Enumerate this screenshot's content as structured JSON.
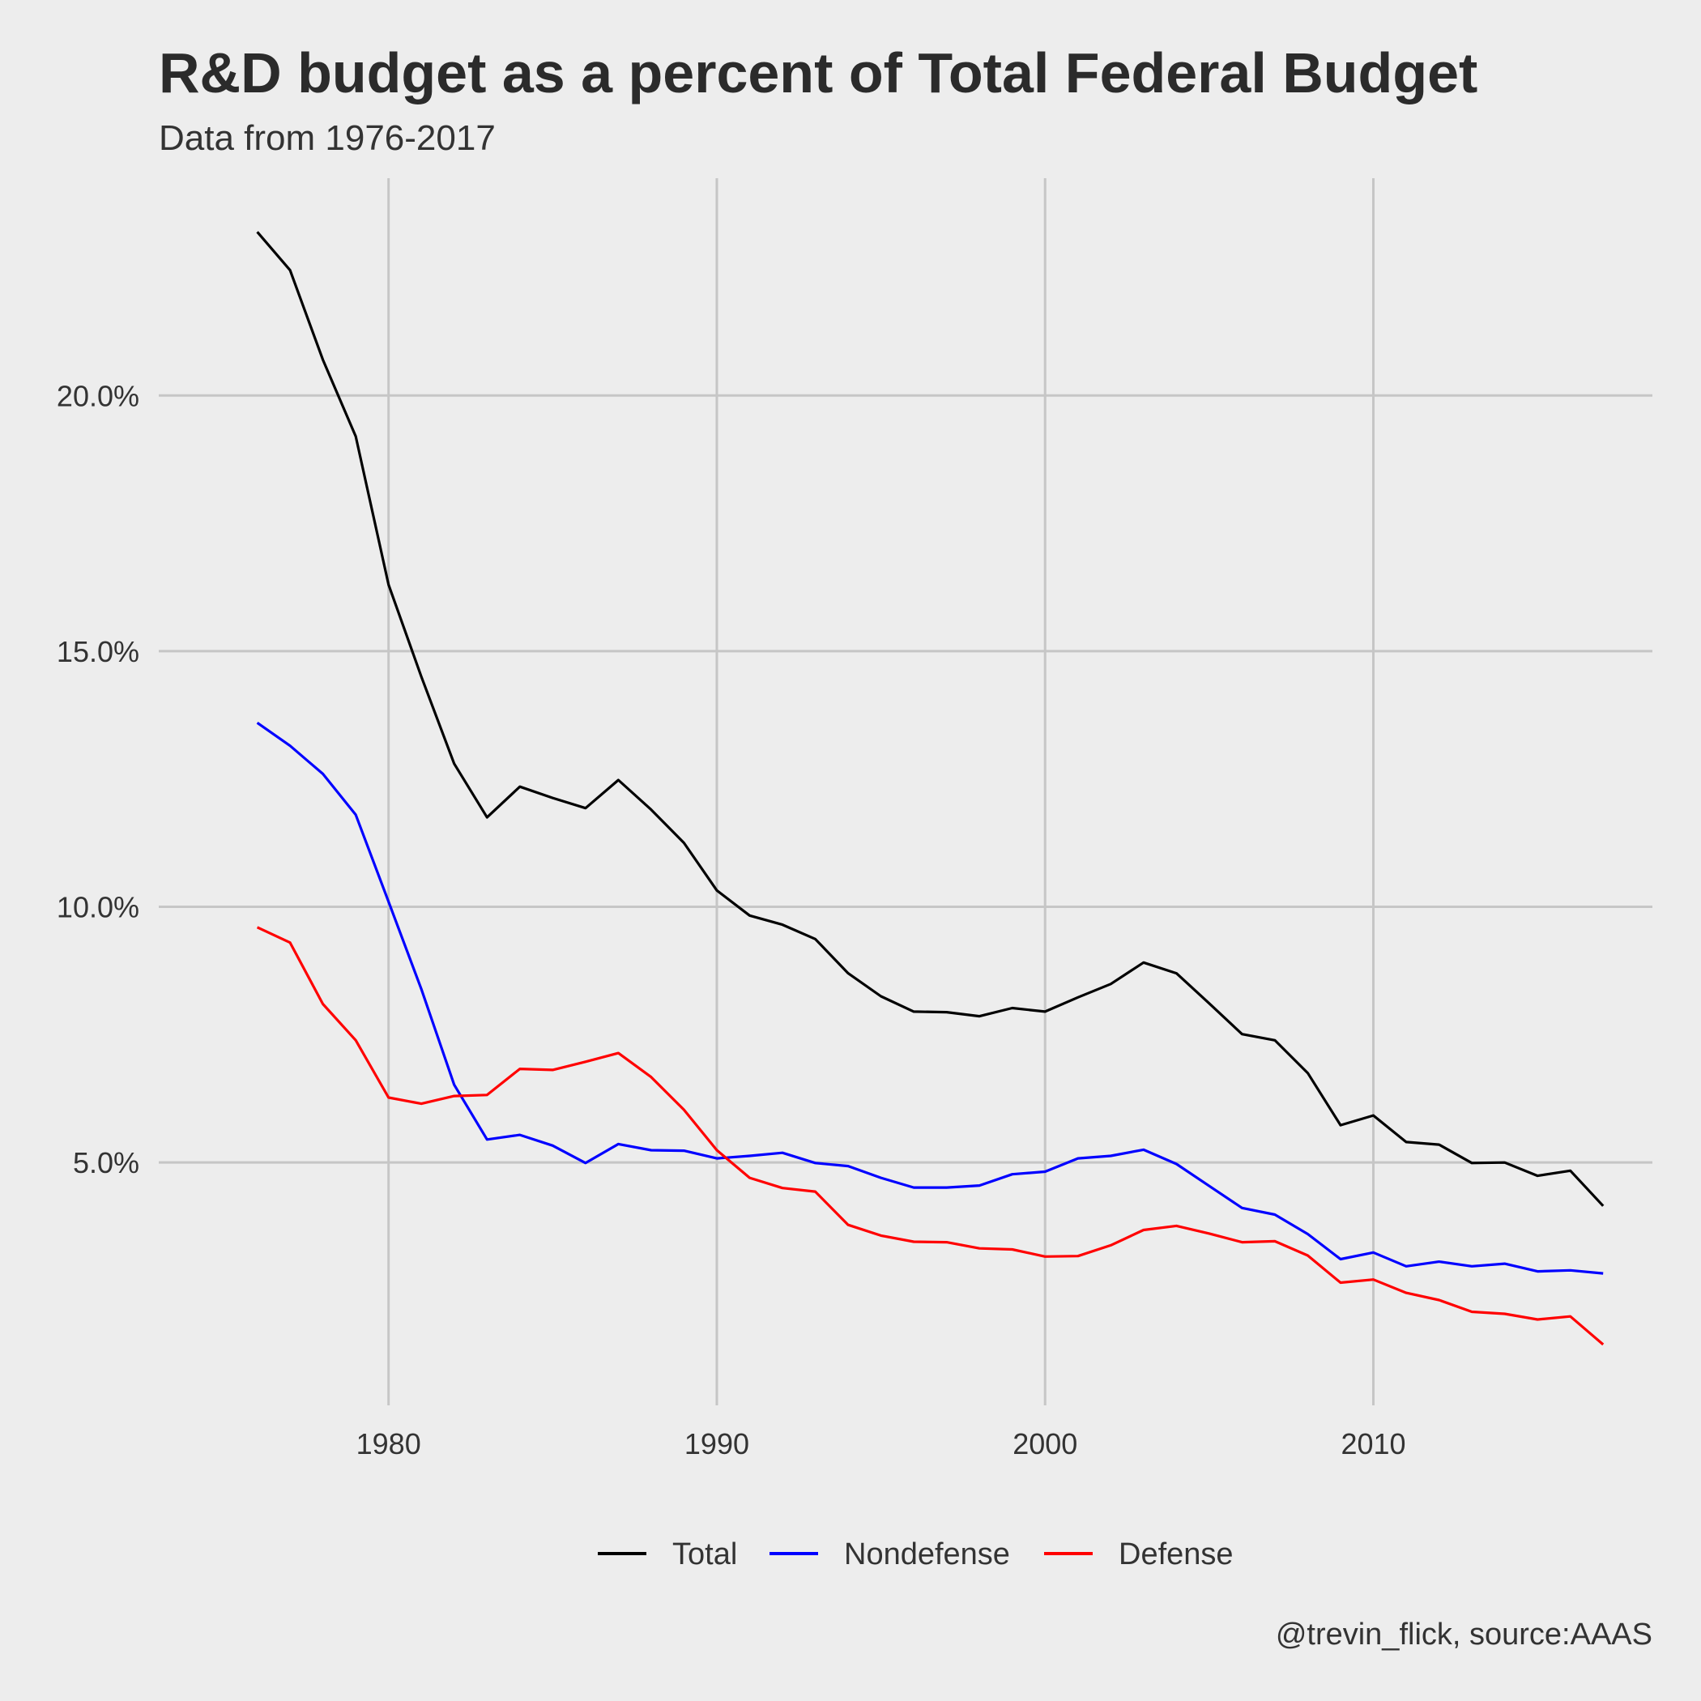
{
  "chart_data": {
    "type": "line",
    "title": "R&D budget as a percent of Total Federal Budget",
    "subtitle": "Data from 1976-2017",
    "caption": "@trevin_flick, source:AAAS",
    "xlabel": "",
    "ylabel": "",
    "xlim": [
      1973,
      2018.5
    ],
    "ylim": [
      0.0025,
      0.2425
    ],
    "x_ticks": [
      1980,
      1990,
      2000,
      2010
    ],
    "x_tick_labels": [
      "1980",
      "1990",
      "2000",
      "2010"
    ],
    "y_ticks": [
      0.05,
      0.1,
      0.15,
      0.2
    ],
    "y_tick_labels": [
      "5.0%",
      "10.0%",
      "15.0%",
      "20.0%"
    ],
    "grid": true,
    "legend_position": "bottom",
    "x": [
      1976,
      1977,
      1978,
      1979,
      1980,
      1981,
      1982,
      1983,
      1984,
      1985,
      1986,
      1987,
      1988,
      1989,
      1990,
      1991,
      1992,
      1993,
      1994,
      1995,
      1996,
      1997,
      1998,
      1999,
      2000,
      2001,
      2002,
      2003,
      2004,
      2005,
      2006,
      2007,
      2008,
      2009,
      2010,
      2011,
      2012,
      2013,
      2014,
      2015,
      2016,
      2017
    ],
    "series": [
      {
        "name": "Total",
        "color": "#000000",
        "values": [
          0.232,
          0.2245,
          0.207,
          0.192,
          0.163,
          0.145,
          0.128,
          0.1175,
          0.1235,
          0.1213,
          0.1193,
          0.1248,
          0.119,
          0.1125,
          0.1032,
          0.0983,
          0.0965,
          0.0937,
          0.087,
          0.0825,
          0.0795,
          0.0794,
          0.0786,
          0.0802,
          0.0795,
          0.0823,
          0.0849,
          0.0891,
          0.087,
          0.0811,
          0.0751,
          0.0739,
          0.0675,
          0.0573,
          0.0592,
          0.054,
          0.0535,
          0.0499,
          0.05,
          0.0474,
          0.0484,
          0.0415
        ]
      },
      {
        "name": "Nondefense",
        "color": "#0000ff",
        "values": [
          0.136,
          0.1315,
          0.126,
          0.118,
          0.101,
          0.0839,
          0.0652,
          0.0545,
          0.0554,
          0.0533,
          0.0499,
          0.0536,
          0.0524,
          0.0523,
          0.0508,
          0.0513,
          0.0519,
          0.0499,
          0.0493,
          0.047,
          0.0451,
          0.0451,
          0.0455,
          0.0477,
          0.0482,
          0.0508,
          0.0513,
          0.0525,
          0.0497,
          0.0454,
          0.0411,
          0.0398,
          0.036,
          0.0311,
          0.0324,
          0.0297,
          0.0306,
          0.0297,
          0.0302,
          0.0287,
          0.0289,
          0.0283
        ]
      },
      {
        "name": "Defense",
        "color": "#ff0000",
        "values": [
          0.096,
          0.093,
          0.081,
          0.0739,
          0.0627,
          0.0615,
          0.063,
          0.0632,
          0.0683,
          0.0681,
          0.0697,
          0.0714,
          0.0667,
          0.0603,
          0.0524,
          0.047,
          0.045,
          0.0443,
          0.0378,
          0.0357,
          0.0345,
          0.0344,
          0.0332,
          0.033,
          0.0316,
          0.0317,
          0.0338,
          0.0368,
          0.0376,
          0.0361,
          0.0344,
          0.0346,
          0.0318,
          0.0265,
          0.0271,
          0.0245,
          0.0231,
          0.0208,
          0.0204,
          0.0193,
          0.0199,
          0.0144
        ]
      }
    ]
  }
}
